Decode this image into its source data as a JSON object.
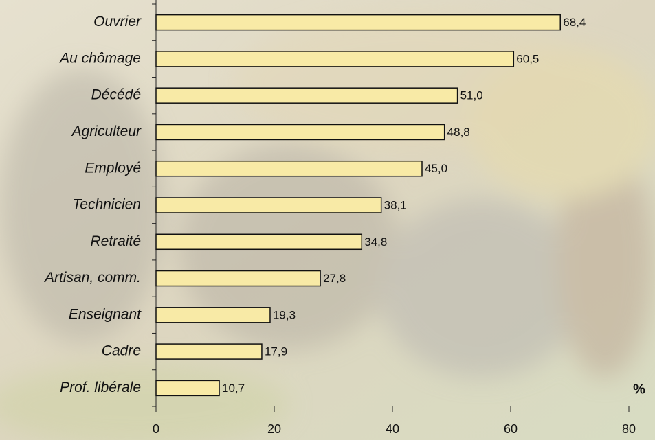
{
  "chart_data": {
    "type": "barh",
    "categories": [
      "Ouvrier",
      "Au chômage",
      "Décédé",
      "Agriculteur",
      "Employé",
      "Technicien",
      "Retraité",
      "Artisan, comm.",
      "Enseignant",
      "Cadre",
      "Prof. libérale"
    ],
    "values": [
      68.4,
      60.5,
      51.0,
      48.8,
      45.0,
      38.1,
      34.8,
      27.8,
      19.3,
      17.9,
      10.7
    ],
    "value_labels": [
      "68,4",
      "60,5",
      "51,0",
      "48,8",
      "45,0",
      "38,1",
      "34,8",
      "27,8",
      "19,3",
      "17,9",
      "10,7"
    ],
    "color": "#f8eaa6",
    "xlim": [
      0,
      80
    ],
    "xticks": [
      0,
      20,
      40,
      60,
      80
    ],
    "x_unit": "%"
  }
}
